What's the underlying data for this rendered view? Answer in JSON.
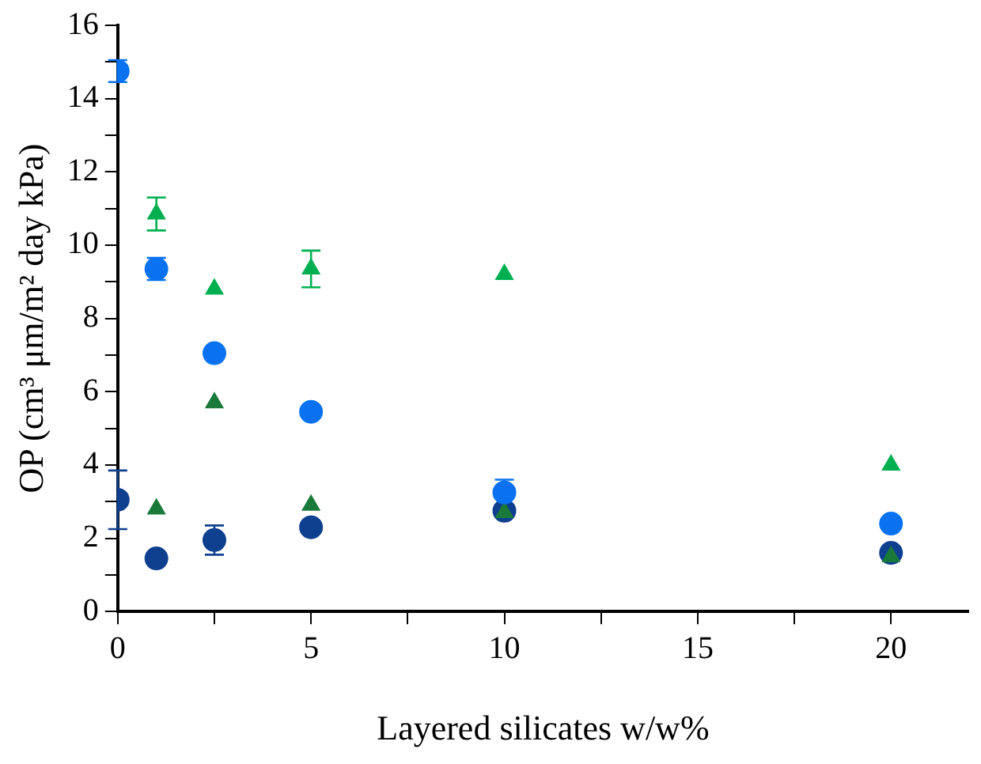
{
  "chart_data": {
    "type": "scatter",
    "xlabel": "Layered silicates w/w%",
    "ylabel": "OP (cm³ μm/m² day kPa)",
    "x": [
      0,
      1,
      2.5,
      5,
      10,
      20
    ],
    "series": [
      {
        "color": "#0a72f0",
        "marker": "circle",
        "values": [
          14.75,
          9.35,
          7.05,
          5.45,
          3.25,
          2.4
        ],
        "errors": [
          0.3,
          0.3,
          null,
          null,
          0.35,
          null
        ]
      },
      {
        "color": "#00b050",
        "marker": "triangle",
        "x": [
          1,
          2.5,
          5,
          10,
          20
        ],
        "values": [
          10.85,
          8.8,
          9.35,
          9.2,
          4.0
        ],
        "errors": [
          0.45,
          null,
          0.5,
          null,
          null
        ]
      },
      {
        "color": "#1a7a3a",
        "marker": "triangle",
        "values": [
          null,
          2.8,
          5.7,
          2.9,
          2.7,
          1.5
        ]
      },
      {
        "color": "#0f3f8f",
        "marker": "circle",
        "values": [
          3.05,
          1.45,
          1.95,
          2.3,
          2.75,
          1.6
        ],
        "errors": [
          0.8,
          null,
          0.4,
          null,
          null,
          null
        ]
      }
    ],
    "xlim": [
      0,
      22
    ],
    "xticks": [
      0,
      {
        "value": 2.5,
        "label": null
      },
      5,
      {
        "value": 7.5,
        "label": null
      },
      10,
      {
        "value": 12.5,
        "label": null
      },
      15,
      {
        "value": 17.5,
        "label": null
      },
      20
    ],
    "ylim": [
      0,
      16
    ],
    "yticks": [
      0,
      {
        "value": 1,
        "label": null
      },
      2,
      {
        "value": 3,
        "label": null
      },
      4,
      {
        "value": 5,
        "label": null
      },
      6,
      {
        "value": 7,
        "label": null
      },
      8,
      {
        "value": 9,
        "label": null
      },
      10,
      {
        "value": 11,
        "label": null
      },
      12,
      {
        "value": 13,
        "label": null
      },
      14,
      {
        "value": 15,
        "label": null
      },
      16
    ],
    "grid": false,
    "legend": false
  }
}
